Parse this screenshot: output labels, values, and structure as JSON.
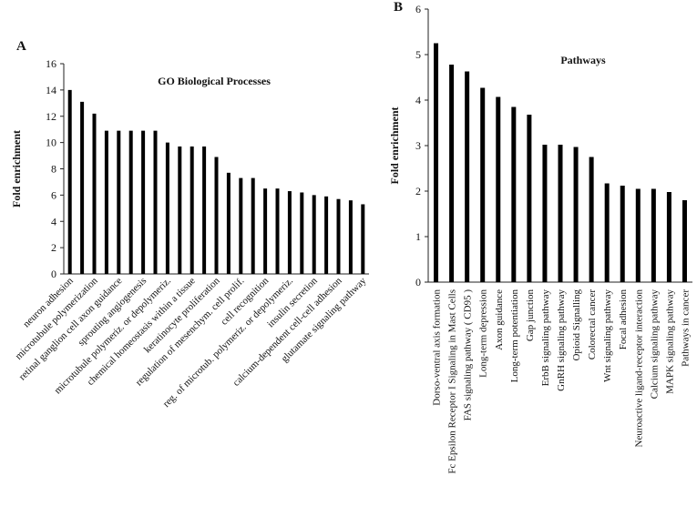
{
  "chart_data": [
    {
      "type": "bar",
      "panel": "A",
      "title": "GO Biological Processes",
      "y_label": "Fold enrichment",
      "categories": [
        "neuron adhesion",
        null,
        "microtubule polymerization",
        null,
        "retinal ganglion cell axon guidance",
        null,
        "sprouting angiogenesis",
        null,
        "microtubule polymeriz. or depolymeriz.",
        null,
        "chemical homeostasis within a tissue",
        null,
        "keratinocyte proliferation",
        null,
        "regulation of mesenchym. cell prolif.",
        null,
        "cell recognition",
        null,
        "reg. of microtub. polymeriz. or depolymeriz.",
        null,
        "insulin secretion",
        null,
        "calcium-dependent cell-cell adhesion",
        null,
        "glutamate signaling pathway"
      ],
      "values": [
        14.0,
        13.1,
        12.2,
        10.9,
        10.9,
        10.9,
        10.9,
        10.9,
        10.0,
        9.7,
        9.7,
        9.7,
        8.9,
        7.7,
        7.3,
        7.3,
        6.5,
        6.5,
        6.3,
        6.2,
        6.0,
        5.9,
        5.7,
        5.6,
        5.3
      ],
      "color": "#000000",
      "ylim": [
        0,
        16
      ],
      "yticks": [
        0,
        2,
        4,
        6,
        8,
        10,
        12,
        14,
        16
      ]
    },
    {
      "type": "bar",
      "panel": "B",
      "title": "Pathways",
      "y_label": "Fold enrichment",
      "categories": [
        "Dorso-ventral axis formation",
        "Fc Epsilon Receptor I Signaling in Mast Cells",
        "FAS signaling pathway ( CD95 )",
        "Long-term depression",
        "Axon guidance",
        "Long-term potentiation",
        "Gap junction",
        "ErbB signaling pathway",
        "GnRH signaling pathway",
        "Opioid Signalling",
        "Colorectal cancer",
        "Wnt signaling pathway",
        "Focal adhesion",
        "Neuroactive ligand-receptor interaction",
        "Calcium signaling pathway",
        "MAPK signaling pathway",
        "Pathways in cancer"
      ],
      "values": [
        5.25,
        4.78,
        4.63,
        4.27,
        4.07,
        3.85,
        3.68,
        3.02,
        3.02,
        2.97,
        2.75,
        2.17,
        2.12,
        2.05,
        2.05,
        1.98,
        1.8
      ],
      "color": "#000000",
      "ylim": [
        0,
        6
      ],
      "yticks": [
        0,
        1,
        2,
        3,
        4,
        5,
        6
      ]
    }
  ]
}
